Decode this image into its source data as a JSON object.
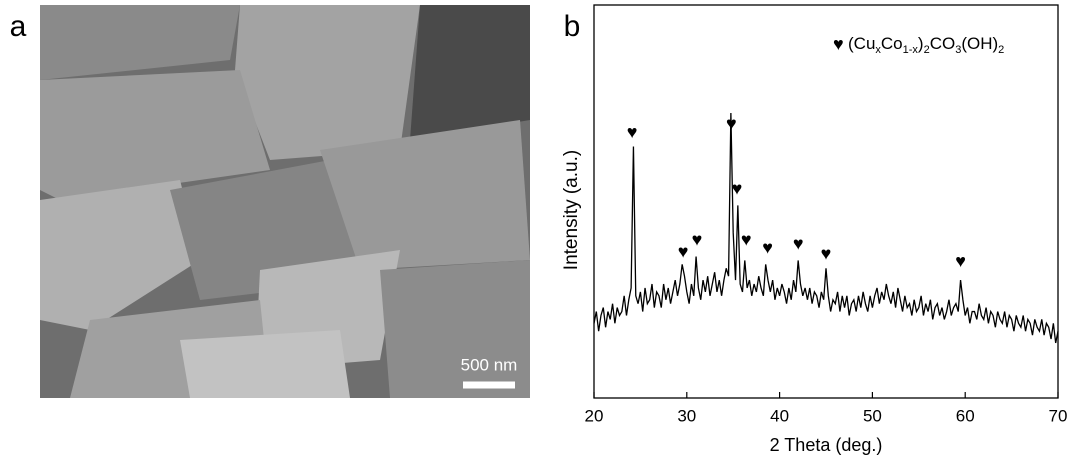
{
  "chart_data": {
    "type": "line",
    "panel_label": "b",
    "xlabel": "2 Theta (deg.)",
    "ylabel": "Intensity (a.u.)",
    "xlim": [
      20,
      70
    ],
    "xticks": [
      20,
      30,
      40,
      50,
      60,
      70
    ],
    "ylim": [
      0,
      100
    ],
    "x": [
      20,
      20.25,
      20.5,
      20.75,
      21,
      21.25,
      21.5,
      21.75,
      22,
      22.25,
      22.5,
      22.75,
      23,
      23.25,
      23.5,
      23.75,
      24,
      24.25,
      24.5,
      24.75,
      25,
      25.25,
      25.5,
      25.75,
      26,
      26.25,
      26.5,
      26.75,
      27,
      27.25,
      27.5,
      27.75,
      28,
      28.25,
      28.5,
      28.75,
      29,
      29.25,
      29.5,
      29.75,
      30,
      30.25,
      30.5,
      30.75,
      31,
      31.25,
      31.5,
      31.75,
      32,
      32.25,
      32.5,
      32.75,
      33,
      33.25,
      33.5,
      33.75,
      34,
      34.25,
      34.5,
      34.75,
      35,
      35.25,
      35.5,
      35.75,
      36,
      36.25,
      36.5,
      36.75,
      37,
      37.25,
      37.5,
      37.75,
      38,
      38.25,
      38.5,
      38.75,
      39,
      39.25,
      39.5,
      39.75,
      40,
      40.25,
      40.5,
      40.75,
      41,
      41.25,
      41.5,
      41.75,
      42,
      42.25,
      42.5,
      42.75,
      43,
      43.25,
      43.5,
      43.75,
      44,
      44.25,
      44.5,
      44.75,
      45,
      45.25,
      45.5,
      45.75,
      46,
      46.25,
      46.5,
      46.75,
      47,
      47.25,
      47.5,
      47.75,
      48,
      48.25,
      48.5,
      48.75,
      49,
      49.25,
      49.5,
      49.75,
      50,
      50.25,
      50.5,
      50.75,
      51,
      51.25,
      51.5,
      51.75,
      52,
      52.25,
      52.5,
      52.75,
      53,
      53.25,
      53.5,
      53.75,
      54,
      54.25,
      54.5,
      54.75,
      55,
      55.25,
      55.5,
      55.75,
      56,
      56.25,
      56.5,
      56.75,
      57,
      57.25,
      57.5,
      57.75,
      58,
      58.25,
      58.5,
      58.75,
      59,
      59.25,
      59.5,
      59.75,
      60,
      60.25,
      60.5,
      60.75,
      61,
      61.25,
      61.5,
      61.75,
      62,
      62.25,
      62.5,
      62.75,
      63,
      63.25,
      63.5,
      63.75,
      64,
      64.25,
      64.5,
      64.75,
      65,
      65.25,
      65.5,
      65.75,
      66,
      66.25,
      66.5,
      66.75,
      67,
      67.25,
      67.5,
      67.75,
      68,
      68.25,
      68.5,
      68.75,
      69,
      69.25,
      69.5,
      69.75,
      70
    ],
    "series": [
      {
        "color": "#000000",
        "values": [
          19,
          22,
          17,
          21,
          23,
          18,
          22,
          20,
          24,
          19,
          23,
          21,
          22,
          26,
          21,
          25,
          28,
          64,
          26,
          24,
          27,
          22,
          28,
          24,
          25,
          29,
          23,
          27,
          26,
          23,
          29,
          25,
          28,
          24,
          27,
          30,
          26,
          29,
          34,
          31,
          27,
          24,
          29,
          26,
          36,
          28,
          25,
          30,
          27,
          31,
          26,
          29,
          32,
          27,
          30,
          26,
          30,
          33,
          31,
          72.5,
          42,
          30,
          49,
          29,
          27,
          35,
          28,
          30,
          26,
          29,
          27,
          31,
          28,
          26,
          34,
          30,
          27,
          30,
          25,
          28,
          26,
          29,
          27,
          24,
          28,
          25,
          30,
          27,
          35,
          29,
          26,
          28,
          25,
          28,
          24,
          27,
          26,
          23,
          27,
          25,
          33,
          26,
          22,
          25,
          24,
          27,
          22,
          26,
          23,
          26,
          21,
          24,
          25,
          22,
          26,
          23,
          27,
          24,
          22,
          26,
          23,
          26,
          28,
          24,
          27,
          25,
          29,
          26,
          24,
          27,
          23,
          28,
          25,
          22,
          26,
          23,
          24,
          21,
          25,
          22,
          23,
          26,
          21,
          24,
          22,
          25,
          20,
          23,
          24,
          21,
          23,
          20,
          22,
          25,
          21,
          23,
          24,
          22,
          30,
          25,
          21,
          23,
          19,
          22,
          22,
          20,
          24,
          21,
          20,
          23,
          19,
          22,
          21,
          18,
          22,
          20,
          19,
          22,
          18,
          21,
          20,
          17,
          21,
          19,
          18,
          21,
          17,
          20,
          19,
          16,
          20,
          18,
          17,
          20,
          16,
          19,
          18,
          15,
          19,
          14,
          17
        ]
      }
    ],
    "markers": {
      "symbol": "♥",
      "x": [
        24.1,
        29.6,
        31.1,
        34.8,
        35.4,
        36.4,
        38.7,
        42.0,
        45.0,
        59.5
      ],
      "y": [
        67.4,
        37,
        40,
        69.5,
        53,
        40,
        38,
        39,
        36.4,
        34.6
      ]
    },
    "legend": {
      "symbol": "♥",
      "parts": [
        {
          "text": "(Cu"
        },
        {
          "text": "x",
          "sub": true
        },
        {
          "text": "Co"
        },
        {
          "text": "1-x",
          "sub": true
        },
        {
          "text": ")"
        },
        {
          "text": "2",
          "sub": true
        },
        {
          "text": "CO"
        },
        {
          "text": "3",
          "sub": true
        },
        {
          "text": "(OH)"
        },
        {
          "text": "2",
          "sub": true
        }
      ]
    }
  },
  "image_panel": {
    "panel_label": "a",
    "scale_bar": "500 nm"
  }
}
